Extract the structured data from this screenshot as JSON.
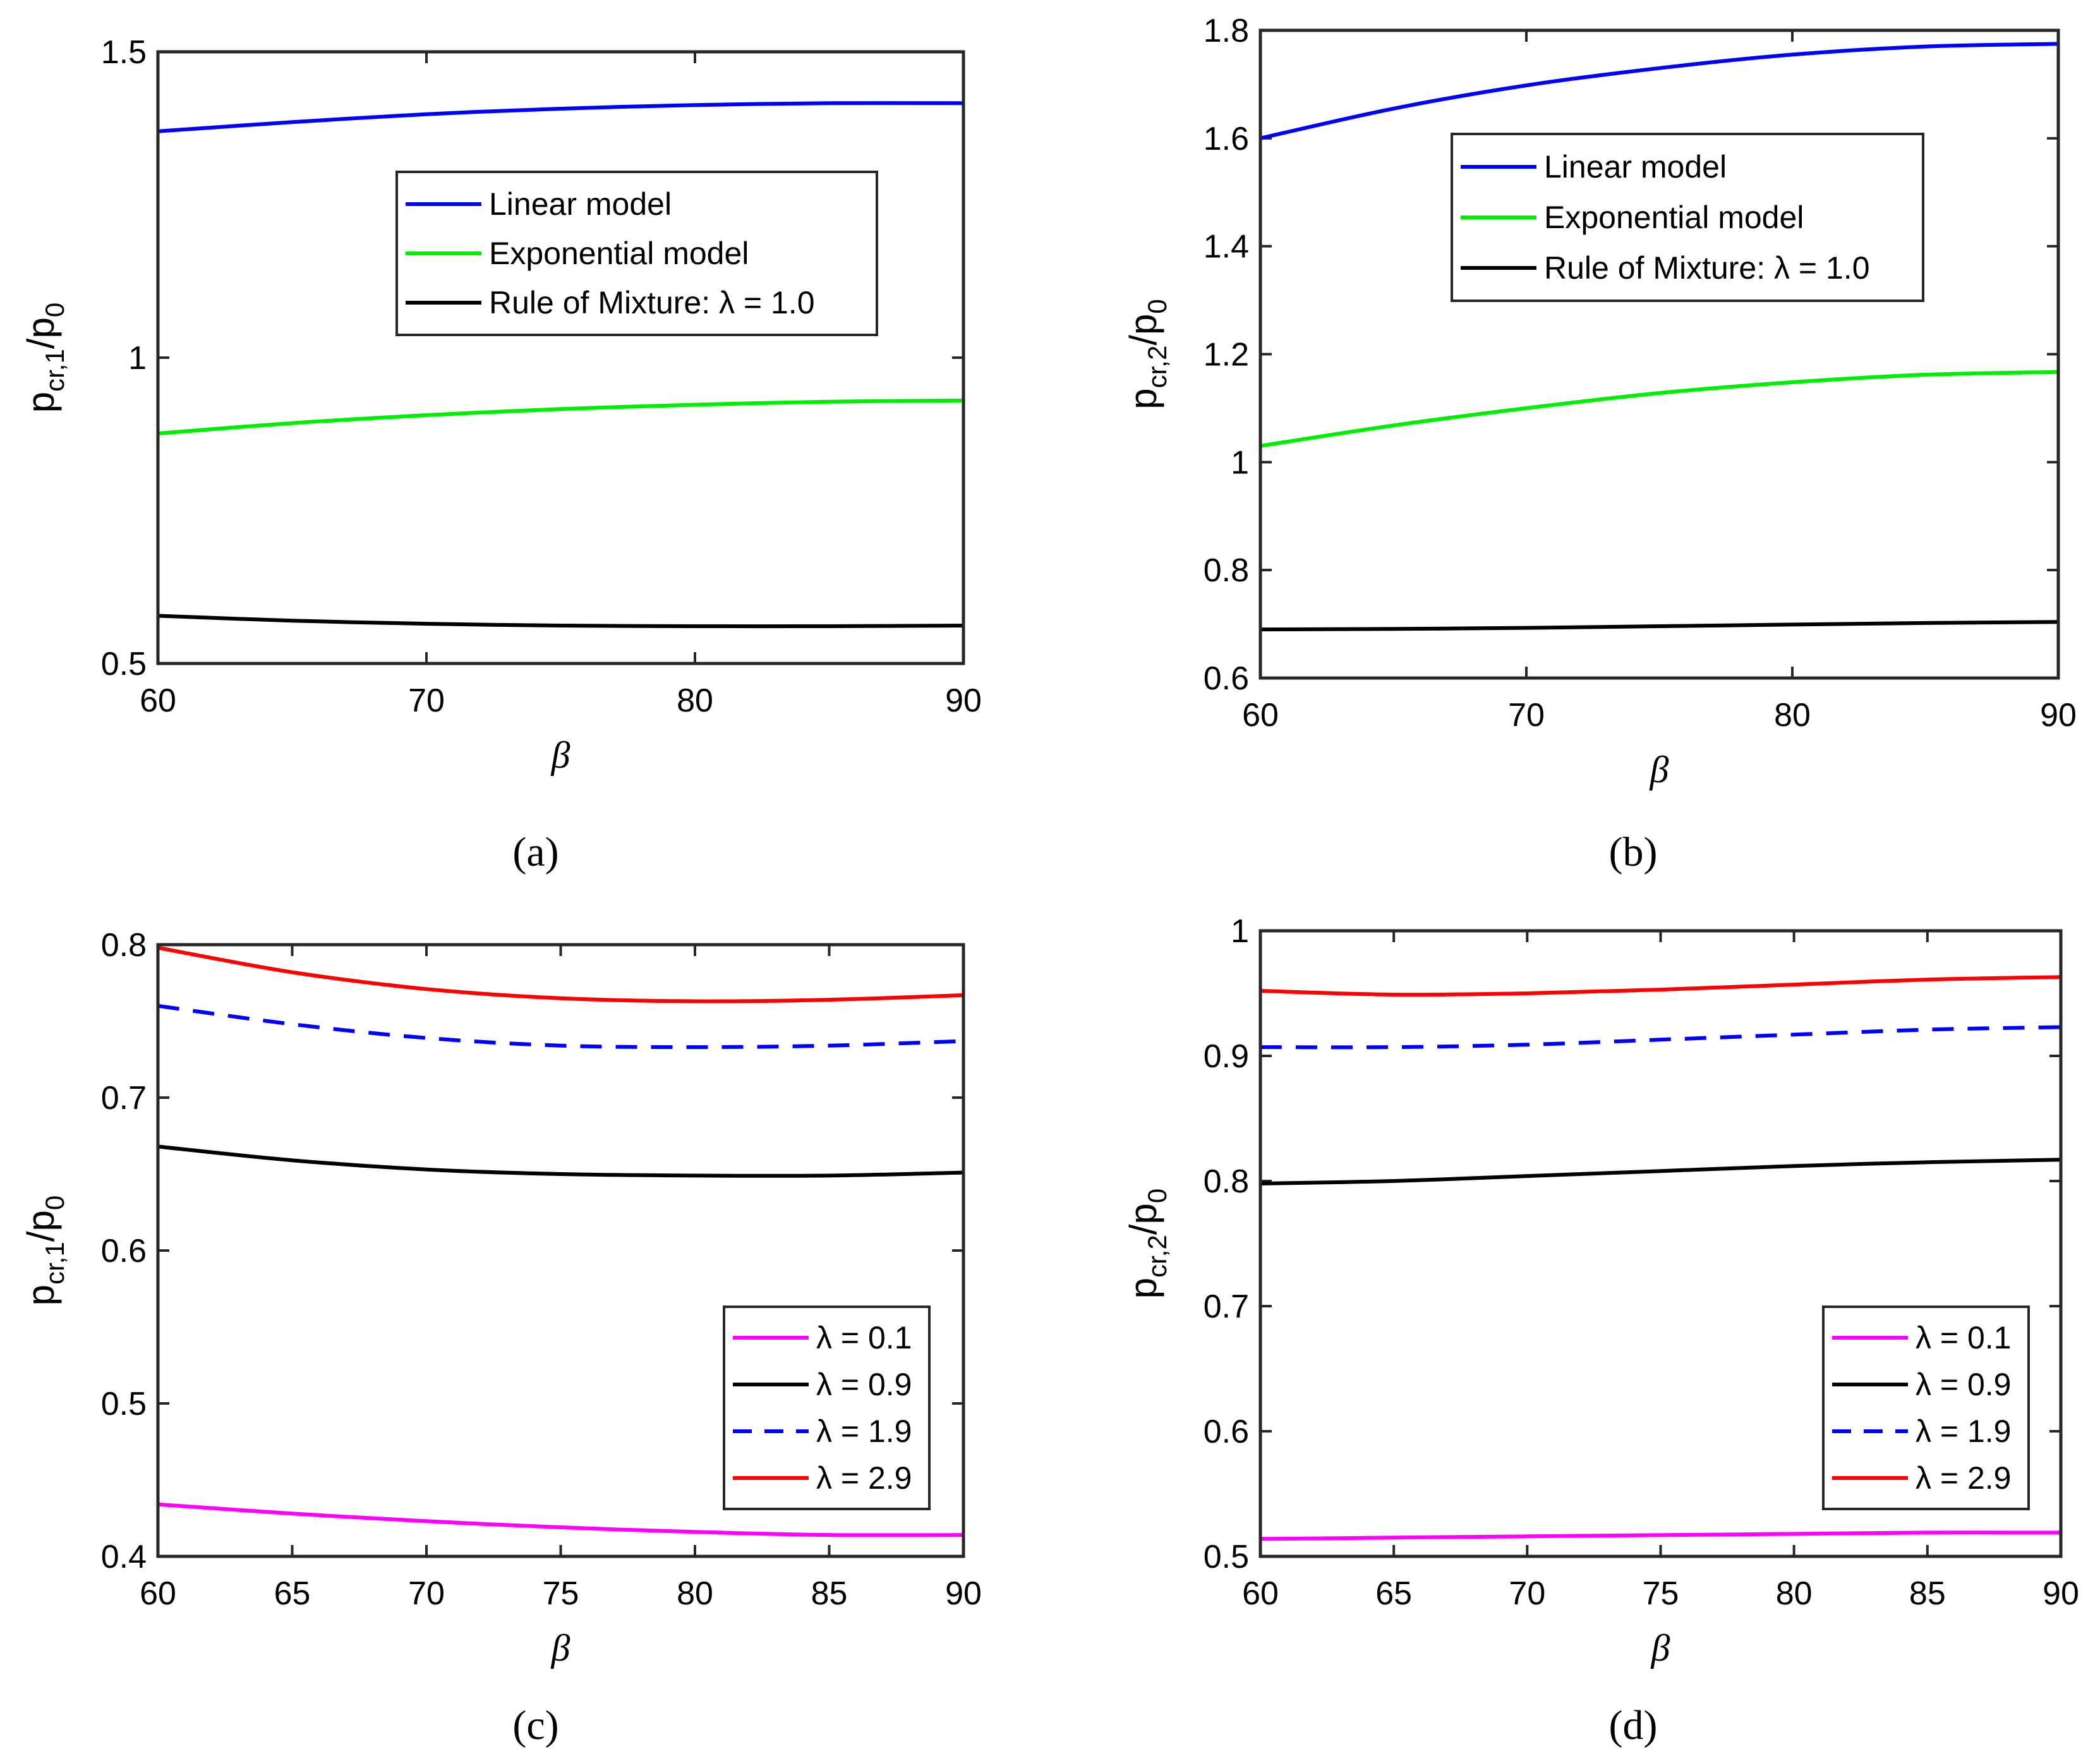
{
  "figure": {
    "panels": [
      {
        "caption": "(a)",
        "letter": "a"
      },
      {
        "caption": "(b)",
        "letter": "b"
      },
      {
        "caption": "(c)",
        "letter": "c"
      },
      {
        "caption": "(d)",
        "letter": "d"
      }
    ]
  },
  "chart_data": [
    {
      "type": "line",
      "panel": "a",
      "ylabel_main": "p",
      "ylabel_sub": "cr,1",
      "ylabel_tail": "/p",
      "ylabel_sub2": "0",
      "xlabel": "β",
      "xlim": [
        60,
        90
      ],
      "ylim": [
        0.5,
        1.5
      ],
      "xticks": [
        60,
        70,
        80,
        90
      ],
      "xtick_labels": [
        "60",
        "70",
        "80",
        "90"
      ],
      "yticks": [
        0.5,
        1,
        1.5
      ],
      "ytick_labels": [
        "0.5",
        "1",
        "1.5"
      ],
      "legend_position": "upper-center",
      "series": [
        {
          "name": "Linear model",
          "color": "#0000ff",
          "dash": "solid",
          "x": [
            60,
            65,
            70,
            75,
            80,
            85,
            90
          ],
          "y": [
            1.37,
            1.385,
            1.398,
            1.407,
            1.413,
            1.416,
            1.416
          ]
        },
        {
          "name": "Exponential model",
          "color": "#00ee00",
          "dash": "solid",
          "x": [
            60,
            65,
            70,
            75,
            80,
            85,
            90
          ],
          "y": [
            0.876,
            0.893,
            0.906,
            0.916,
            0.923,
            0.928,
            0.93
          ]
        },
        {
          "name": "Rule of Mixture: λ = 1.0",
          "color": "#000000",
          "dash": "solid",
          "x": [
            60,
            65,
            70,
            75,
            80,
            85,
            90
          ],
          "y": [
            0.578,
            0.57,
            0.565,
            0.562,
            0.561,
            0.561,
            0.562
          ]
        }
      ]
    },
    {
      "type": "line",
      "panel": "b",
      "ylabel_main": "p",
      "ylabel_sub": "cr,2",
      "ylabel_tail": "/p",
      "ylabel_sub2": "0",
      "xlabel": "β",
      "xlim": [
        60,
        90
      ],
      "ylim": [
        0.6,
        1.8
      ],
      "xticks": [
        60,
        70,
        80,
        90
      ],
      "xtick_labels": [
        "60",
        "70",
        "80",
        "90"
      ],
      "yticks": [
        0.6,
        0.8,
        1,
        1.2,
        1.4,
        1.6,
        1.8
      ],
      "ytick_labels": [
        "0.6",
        "0.8",
        "1",
        "1.2",
        "1.4",
        "1.6",
        "1.8"
      ],
      "legend_position": "upper-center",
      "series": [
        {
          "name": "Linear model",
          "color": "#0000ff",
          "dash": "solid",
          "x": [
            60,
            65,
            70,
            75,
            80,
            85,
            90
          ],
          "y": [
            1.6,
            1.655,
            1.698,
            1.73,
            1.755,
            1.77,
            1.775
          ]
        },
        {
          "name": "Exponential model",
          "color": "#00ee00",
          "dash": "solid",
          "x": [
            60,
            65,
            70,
            75,
            80,
            85,
            90
          ],
          "y": [
            1.03,
            1.068,
            1.1,
            1.128,
            1.148,
            1.162,
            1.167
          ]
        },
        {
          "name": "Rule of Mixture: λ = 1.0",
          "color": "#000000",
          "dash": "solid",
          "x": [
            60,
            65,
            70,
            75,
            80,
            85,
            90
          ],
          "y": [
            0.69,
            0.691,
            0.693,
            0.696,
            0.699,
            0.702,
            0.704
          ]
        }
      ]
    },
    {
      "type": "line",
      "panel": "c",
      "ylabel_main": "p",
      "ylabel_sub": "cr,1",
      "ylabel_tail": "/p",
      "ylabel_sub2": "0",
      "xlabel": "β",
      "xlim": [
        60,
        90
      ],
      "ylim": [
        0.4,
        0.8
      ],
      "xticks": [
        60,
        65,
        70,
        75,
        80,
        85,
        90
      ],
      "xtick_labels": [
        "60",
        "65",
        "70",
        "75",
        "80",
        "85",
        "90"
      ],
      "yticks": [
        0.4,
        0.5,
        0.6,
        0.7,
        0.8
      ],
      "ytick_labels": [
        "0.4",
        "0.5",
        "0.6",
        "0.7",
        "0.8"
      ],
      "legend_position": "lower-right",
      "series": [
        {
          "name": "λ = 0.1",
          "color": "#ff00ff",
          "dash": "solid",
          "x": [
            60,
            65,
            70,
            75,
            80,
            85,
            90
          ],
          "y": [
            0.434,
            0.428,
            0.423,
            0.419,
            0.416,
            0.414,
            0.414
          ]
        },
        {
          "name": "λ = 0.9",
          "color": "#000000",
          "dash": "solid",
          "x": [
            60,
            65,
            70,
            75,
            80,
            85,
            90
          ],
          "y": [
            0.668,
            0.659,
            0.653,
            0.65,
            0.649,
            0.649,
            0.651
          ]
        },
        {
          "name": "λ = 1.9",
          "color": "#0000ff",
          "dash": "dashed",
          "x": [
            60,
            65,
            70,
            75,
            80,
            85,
            90
          ],
          "y": [
            0.76,
            0.748,
            0.739,
            0.734,
            0.733,
            0.734,
            0.737
          ]
        },
        {
          "name": "λ = 2.9",
          "color": "#ff0000",
          "dash": "solid",
          "x": [
            60,
            65,
            70,
            75,
            80,
            85,
            90
          ],
          "y": [
            0.798,
            0.782,
            0.771,
            0.765,
            0.763,
            0.764,
            0.767
          ]
        }
      ]
    },
    {
      "type": "line",
      "panel": "d",
      "ylabel_main": "p",
      "ylabel_sub": "cr,2",
      "ylabel_tail": "/p",
      "ylabel_sub2": "0",
      "xlabel": "β",
      "xlim": [
        60,
        90
      ],
      "ylim": [
        0.5,
        1
      ],
      "xticks": [
        60,
        65,
        70,
        75,
        80,
        85,
        90
      ],
      "xtick_labels": [
        "60",
        "65",
        "70",
        "75",
        "80",
        "85",
        "90"
      ],
      "yticks": [
        0.5,
        0.6,
        0.7,
        0.8,
        0.9,
        1
      ],
      "ytick_labels": [
        "0.5",
        "0.6",
        "0.7",
        "0.8",
        "0.9",
        "1"
      ],
      "legend_position": "lower-right",
      "series": [
        {
          "name": "λ = 0.1",
          "color": "#ff00ff",
          "dash": "solid",
          "x": [
            60,
            65,
            70,
            75,
            80,
            85,
            90
          ],
          "y": [
            0.514,
            0.515,
            0.516,
            0.517,
            0.518,
            0.519,
            0.519
          ]
        },
        {
          "name": "λ = 0.9",
          "color": "#000000",
          "dash": "solid",
          "x": [
            60,
            65,
            70,
            75,
            80,
            85,
            90
          ],
          "y": [
            0.798,
            0.8,
            0.804,
            0.808,
            0.812,
            0.815,
            0.817
          ]
        },
        {
          "name": "λ = 1.9",
          "color": "#0000ff",
          "dash": "dashed",
          "x": [
            60,
            65,
            70,
            75,
            80,
            85,
            90
          ],
          "y": [
            0.907,
            0.907,
            0.909,
            0.913,
            0.917,
            0.921,
            0.923
          ]
        },
        {
          "name": "λ = 2.9",
          "color": "#ff0000",
          "dash": "solid",
          "x": [
            60,
            65,
            70,
            75,
            80,
            85,
            90
          ],
          "y": [
            0.952,
            0.949,
            0.95,
            0.953,
            0.957,
            0.961,
            0.963
          ]
        }
      ]
    }
  ]
}
